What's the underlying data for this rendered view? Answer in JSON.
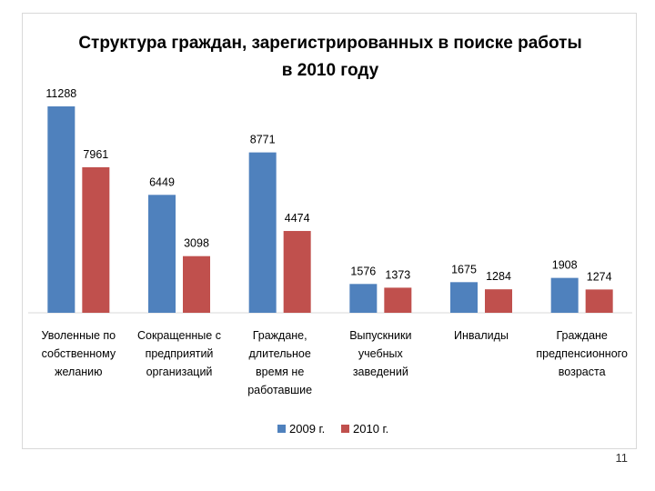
{
  "page": {
    "number": "11"
  },
  "colors": {
    "series_2009": "#4F81BD",
    "series_2010": "#C0504D",
    "axis": "#d9d9d9",
    "text": "#000000"
  },
  "chart_data": {
    "type": "bar",
    "title_lines": [
      "Структура граждан, зарегистрированных в поиске работы",
      "в 2010 году"
    ],
    "categories": [
      [
        "Уволенные по",
        "собственному",
        "желанию"
      ],
      [
        "Сокращенные с",
        "предприятий",
        "организаций"
      ],
      [
        "Граждане,",
        "длительное",
        "время не",
        "работавшие"
      ],
      [
        "Выпускники",
        "учебных",
        "заведений"
      ],
      [
        "Инвалиды"
      ],
      [
        "Граждане",
        "предпенсионного",
        "возраста"
      ]
    ],
    "series": [
      {
        "name": "2009 г.",
        "values": [
          11288,
          6449,
          8771,
          1576,
          1675,
          1908
        ]
      },
      {
        "name": "2010 г.",
        "values": [
          7961,
          3098,
          4474,
          1373,
          1284,
          1274
        ]
      }
    ],
    "ylim": [
      0,
      12000
    ],
    "grid": false,
    "legend": "bottom-center",
    "xlabel": "",
    "ylabel": ""
  }
}
